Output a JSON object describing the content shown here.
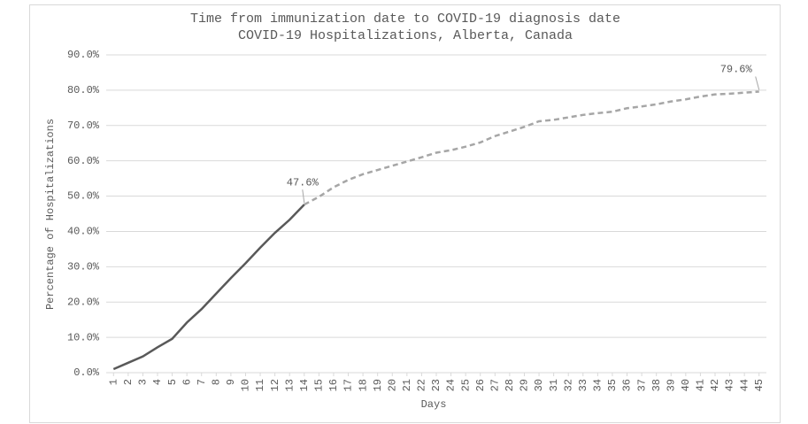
{
  "chart_data": {
    "type": "line",
    "title": "Time from immunization date to COVID-19 diagnosis date",
    "subtitle": "COVID-19 Hospitalizations, Alberta, Canada",
    "x_label": "Days",
    "y_label": "Percentage of Hospitalizations",
    "categories": [
      "1",
      "2",
      "3",
      "4",
      "5",
      "6",
      "7",
      "8",
      "9",
      "10",
      "11",
      "12",
      "13",
      "14",
      "15",
      "16",
      "17",
      "18",
      "19",
      "20",
      "21",
      "22",
      "23",
      "24",
      "25",
      "26",
      "27",
      "28",
      "29",
      "30",
      "31",
      "32",
      "33",
      "34",
      "35",
      "36",
      "37",
      "38",
      "39",
      "40",
      "41",
      "42",
      "43",
      "44",
      "45"
    ],
    "series": [
      {
        "color": "#595959",
        "dashed": false,
        "values": [
          1.0,
          2.8,
          4.6,
          7.2,
          9.6,
          14.2,
          18.0,
          22.4,
          26.8,
          31.0,
          35.4,
          39.6,
          43.3,
          47.6,
          null,
          null,
          null,
          null,
          null,
          null,
          null,
          null,
          null,
          null,
          null,
          null,
          null,
          null,
          null,
          null,
          null,
          null,
          null,
          null,
          null,
          null,
          null,
          null,
          null,
          null,
          null,
          null,
          null,
          null,
          null
        ],
        "value_labels": [
          null,
          null,
          null,
          null,
          null,
          null,
          null,
          null,
          null,
          null,
          null,
          null,
          null,
          "47.6%",
          null,
          null,
          null,
          null,
          null,
          null,
          null,
          null,
          null,
          null,
          null,
          null,
          null,
          null,
          null,
          null,
          null,
          null,
          null,
          null,
          null,
          null,
          null,
          null,
          null,
          null,
          null,
          null,
          null,
          null,
          null
        ]
      },
      {
        "color": "#a6a6a6",
        "dashed": true,
        "values": [
          null,
          null,
          null,
          null,
          null,
          null,
          null,
          null,
          null,
          null,
          null,
          null,
          null,
          47.6,
          49.8,
          52.5,
          54.6,
          56.2,
          57.4,
          58.6,
          59.8,
          61.0,
          62.3,
          63.0,
          64.0,
          65.2,
          67.0,
          68.3,
          69.6,
          71.2,
          71.6,
          72.3,
          73.0,
          73.5,
          73.9,
          74.9,
          75.4,
          76.0,
          76.8,
          77.4,
          78.2,
          78.8,
          79.0,
          79.3,
          79.6
        ],
        "value_labels": [
          null,
          null,
          null,
          null,
          null,
          null,
          null,
          null,
          null,
          null,
          null,
          null,
          null,
          null,
          null,
          null,
          null,
          null,
          null,
          null,
          null,
          null,
          null,
          null,
          null,
          null,
          null,
          null,
          null,
          null,
          null,
          null,
          null,
          null,
          null,
          null,
          null,
          null,
          null,
          null,
          null,
          null,
          null,
          null,
          "79.6%"
        ]
      }
    ],
    "ylim": [
      0,
      90
    ],
    "yticks": [
      {
        "value": 0,
        "label": "0.0%"
      },
      {
        "value": 10,
        "label": "10.0%"
      },
      {
        "value": 20,
        "label": "20.0%"
      },
      {
        "value": 30,
        "label": "30.0%"
      },
      {
        "value": 40,
        "label": "40.0%"
      },
      {
        "value": 50,
        "label": "50.0%"
      },
      {
        "value": 60,
        "label": "60.0%"
      },
      {
        "value": 70,
        "label": "70.0%"
      },
      {
        "value": 80,
        "label": "80.0%"
      },
      {
        "value": 90,
        "label": "90.0%"
      }
    ],
    "grid": true
  }
}
